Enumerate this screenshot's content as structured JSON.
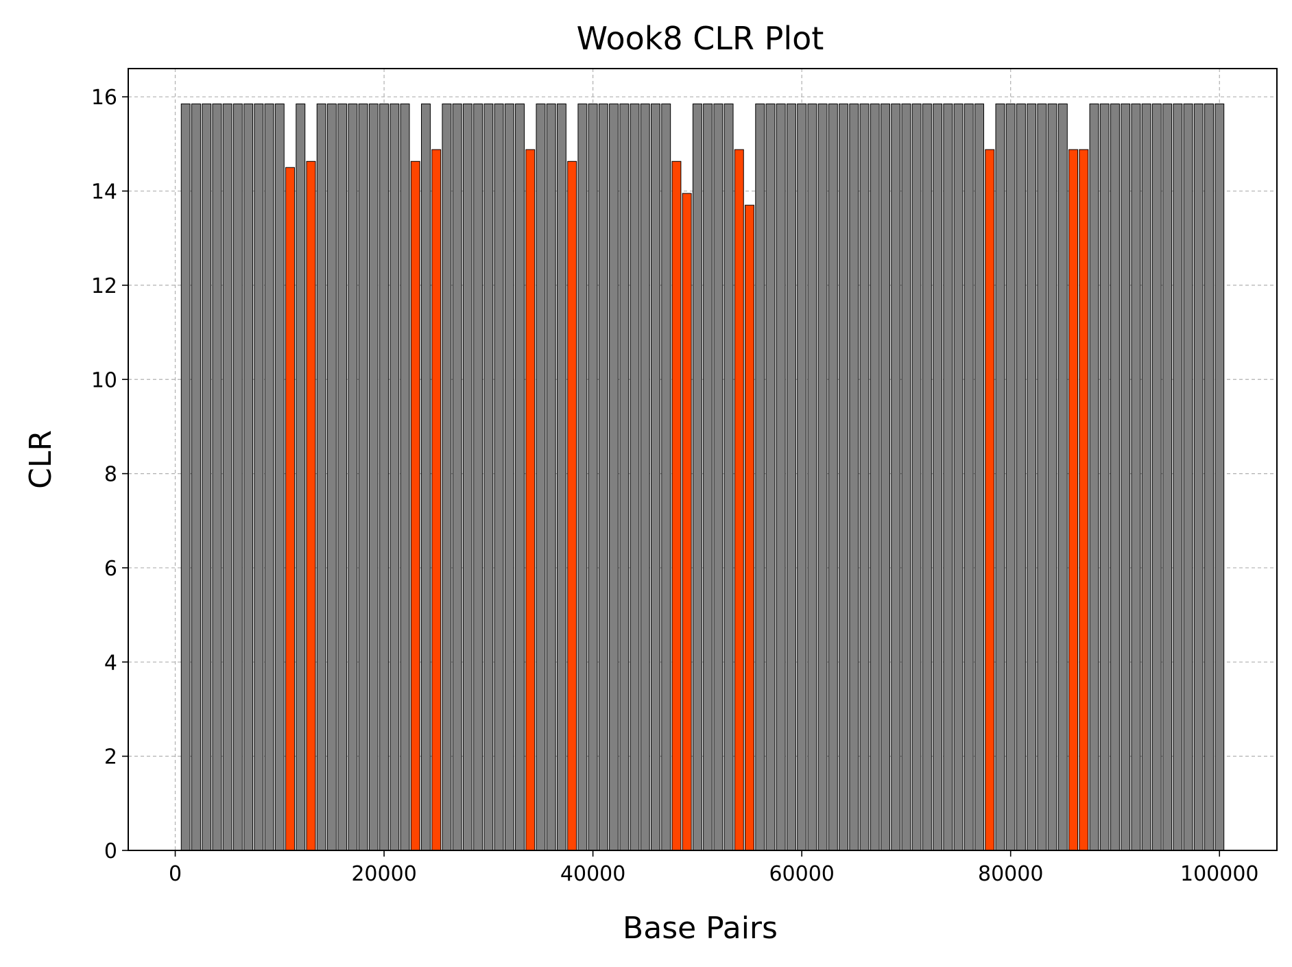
{
  "chart_data": {
    "type": "bar",
    "title": "Wook8 CLR Plot",
    "xlabel": "Base Pairs",
    "ylabel": "CLR",
    "xlim": [
      -4500,
      105500
    ],
    "ylim": [
      0,
      16.6
    ],
    "xticks": [
      0,
      20000,
      40000,
      60000,
      80000,
      100000
    ],
    "yticks": [
      0,
      2,
      4,
      6,
      8,
      10,
      12,
      14,
      16
    ],
    "grid": true,
    "bar_width": 850,
    "colors": {
      "normal": "#808080",
      "highlight": "#ff4500",
      "edge": "#000000"
    },
    "bars": [
      {
        "x": 1000,
        "y": 15.85,
        "h": false
      },
      {
        "x": 2000,
        "y": 15.85,
        "h": false
      },
      {
        "x": 3000,
        "y": 15.85,
        "h": false
      },
      {
        "x": 4000,
        "y": 15.85,
        "h": false
      },
      {
        "x": 5000,
        "y": 15.85,
        "h": false
      },
      {
        "x": 6000,
        "y": 15.85,
        "h": false
      },
      {
        "x": 7000,
        "y": 15.85,
        "h": false
      },
      {
        "x": 8000,
        "y": 15.85,
        "h": false
      },
      {
        "x": 9000,
        "y": 15.85,
        "h": false
      },
      {
        "x": 10000,
        "y": 15.85,
        "h": false
      },
      {
        "x": 11000,
        "y": 14.5,
        "h": true
      },
      {
        "x": 12000,
        "y": 15.85,
        "h": false
      },
      {
        "x": 13000,
        "y": 14.63,
        "h": true
      },
      {
        "x": 14000,
        "y": 15.85,
        "h": false
      },
      {
        "x": 15000,
        "y": 15.85,
        "h": false
      },
      {
        "x": 16000,
        "y": 15.85,
        "h": false
      },
      {
        "x": 17000,
        "y": 15.85,
        "h": false
      },
      {
        "x": 18000,
        "y": 15.85,
        "h": false
      },
      {
        "x": 19000,
        "y": 15.85,
        "h": false
      },
      {
        "x": 20000,
        "y": 15.85,
        "h": false
      },
      {
        "x": 21000,
        "y": 15.85,
        "h": false
      },
      {
        "x": 22000,
        "y": 15.85,
        "h": false
      },
      {
        "x": 23000,
        "y": 14.63,
        "h": true
      },
      {
        "x": 24000,
        "y": 15.85,
        "h": false
      },
      {
        "x": 25000,
        "y": 14.88,
        "h": true
      },
      {
        "x": 26000,
        "y": 15.85,
        "h": false
      },
      {
        "x": 27000,
        "y": 15.85,
        "h": false
      },
      {
        "x": 28000,
        "y": 15.85,
        "h": false
      },
      {
        "x": 29000,
        "y": 15.85,
        "h": false
      },
      {
        "x": 30000,
        "y": 15.85,
        "h": false
      },
      {
        "x": 31000,
        "y": 15.85,
        "h": false
      },
      {
        "x": 32000,
        "y": 15.85,
        "h": false
      },
      {
        "x": 33000,
        "y": 15.85,
        "h": false
      },
      {
        "x": 34000,
        "y": 14.88,
        "h": true
      },
      {
        "x": 35000,
        "y": 15.85,
        "h": false
      },
      {
        "x": 36000,
        "y": 15.85,
        "h": false
      },
      {
        "x": 37000,
        "y": 15.85,
        "h": false
      },
      {
        "x": 38000,
        "y": 14.63,
        "h": true
      },
      {
        "x": 39000,
        "y": 15.85,
        "h": false
      },
      {
        "x": 40000,
        "y": 15.85,
        "h": false
      },
      {
        "x": 41000,
        "y": 15.85,
        "h": false
      },
      {
        "x": 42000,
        "y": 15.85,
        "h": false
      },
      {
        "x": 43000,
        "y": 15.85,
        "h": false
      },
      {
        "x": 44000,
        "y": 15.85,
        "h": false
      },
      {
        "x": 45000,
        "y": 15.85,
        "h": false
      },
      {
        "x": 46000,
        "y": 15.85,
        "h": false
      },
      {
        "x": 47000,
        "y": 15.85,
        "h": false
      },
      {
        "x": 48000,
        "y": 14.63,
        "h": true
      },
      {
        "x": 49000,
        "y": 13.95,
        "h": true
      },
      {
        "x": 50000,
        "y": 15.85,
        "h": false
      },
      {
        "x": 51000,
        "y": 15.85,
        "h": false
      },
      {
        "x": 52000,
        "y": 15.85,
        "h": false
      },
      {
        "x": 53000,
        "y": 15.85,
        "h": false
      },
      {
        "x": 54000,
        "y": 14.88,
        "h": true
      },
      {
        "x": 55000,
        "y": 13.7,
        "h": true
      },
      {
        "x": 56000,
        "y": 15.85,
        "h": false
      },
      {
        "x": 57000,
        "y": 15.85,
        "h": false
      },
      {
        "x": 58000,
        "y": 15.85,
        "h": false
      },
      {
        "x": 59000,
        "y": 15.85,
        "h": false
      },
      {
        "x": 60000,
        "y": 15.85,
        "h": false
      },
      {
        "x": 61000,
        "y": 15.85,
        "h": false
      },
      {
        "x": 62000,
        "y": 15.85,
        "h": false
      },
      {
        "x": 63000,
        "y": 15.85,
        "h": false
      },
      {
        "x": 64000,
        "y": 15.85,
        "h": false
      },
      {
        "x": 65000,
        "y": 15.85,
        "h": false
      },
      {
        "x": 66000,
        "y": 15.85,
        "h": false
      },
      {
        "x": 67000,
        "y": 15.85,
        "h": false
      },
      {
        "x": 68000,
        "y": 15.85,
        "h": false
      },
      {
        "x": 69000,
        "y": 15.85,
        "h": false
      },
      {
        "x": 70000,
        "y": 15.85,
        "h": false
      },
      {
        "x": 71000,
        "y": 15.85,
        "h": false
      },
      {
        "x": 72000,
        "y": 15.85,
        "h": false
      },
      {
        "x": 73000,
        "y": 15.85,
        "h": false
      },
      {
        "x": 74000,
        "y": 15.85,
        "h": false
      },
      {
        "x": 75000,
        "y": 15.85,
        "h": false
      },
      {
        "x": 76000,
        "y": 15.85,
        "h": false
      },
      {
        "x": 77000,
        "y": 15.85,
        "h": false
      },
      {
        "x": 78000,
        "y": 14.88,
        "h": true
      },
      {
        "x": 79000,
        "y": 15.85,
        "h": false
      },
      {
        "x": 80000,
        "y": 15.85,
        "h": false
      },
      {
        "x": 81000,
        "y": 15.85,
        "h": false
      },
      {
        "x": 82000,
        "y": 15.85,
        "h": false
      },
      {
        "x": 83000,
        "y": 15.85,
        "h": false
      },
      {
        "x": 84000,
        "y": 15.85,
        "h": false
      },
      {
        "x": 85000,
        "y": 15.85,
        "h": false
      },
      {
        "x": 86000,
        "y": 14.88,
        "h": true
      },
      {
        "x": 87000,
        "y": 14.88,
        "h": true
      },
      {
        "x": 88000,
        "y": 15.85,
        "h": false
      },
      {
        "x": 89000,
        "y": 15.85,
        "h": false
      },
      {
        "x": 90000,
        "y": 15.85,
        "h": false
      },
      {
        "x": 91000,
        "y": 15.85,
        "h": false
      },
      {
        "x": 92000,
        "y": 15.85,
        "h": false
      },
      {
        "x": 93000,
        "y": 15.85,
        "h": false
      },
      {
        "x": 94000,
        "y": 15.85,
        "h": false
      },
      {
        "x": 95000,
        "y": 15.85,
        "h": false
      },
      {
        "x": 96000,
        "y": 15.85,
        "h": false
      },
      {
        "x": 97000,
        "y": 15.85,
        "h": false
      },
      {
        "x": 98000,
        "y": 15.85,
        "h": false
      },
      {
        "x": 99000,
        "y": 15.85,
        "h": false
      },
      {
        "x": 100000,
        "y": 15.85,
        "h": false
      }
    ]
  }
}
